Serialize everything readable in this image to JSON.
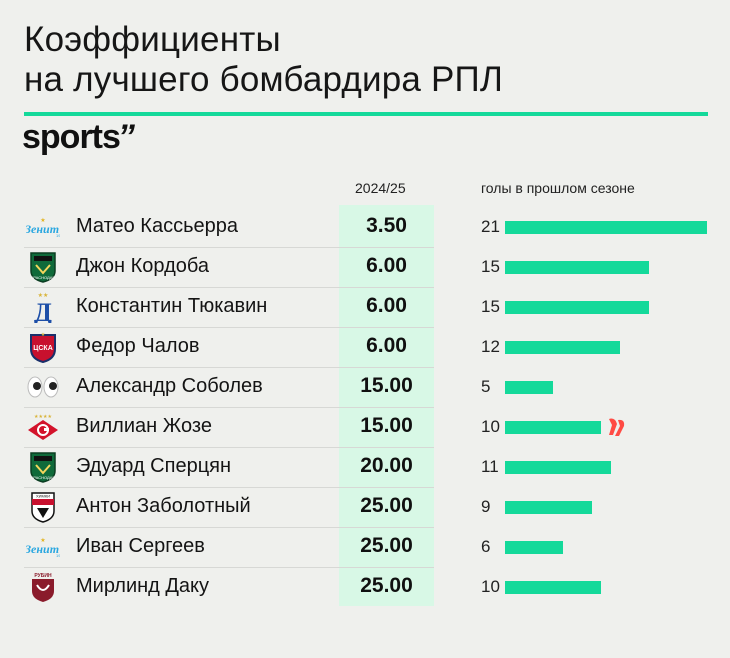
{
  "title_line1": "Коэффициенты",
  "title_line2": "на лучшего бомбардира РПЛ",
  "brand": "sports",
  "brand_mark": "’’",
  "colors": {
    "accent": "#14d99a",
    "odds_bg": "#d8f8e6",
    "background": "#eff0ed"
  },
  "chart_data": {
    "type": "table",
    "columns": [
      "",
      "2024/25",
      "голы в прошлом сезоне"
    ],
    "max_goals": 21,
    "rows": [
      {
        "club_icon": "zenit-logo-icon",
        "player": "Матео Кассьерра",
        "odds": "3.50",
        "goals": 21
      },
      {
        "club_icon": "krasnodar-logo-icon",
        "player": "Джон Кордоба",
        "odds": "6.00",
        "goals": 15
      },
      {
        "club_icon": "dynamo-logo-icon",
        "player": "Константин Тюкавин",
        "odds": "6.00",
        "goals": 15
      },
      {
        "club_icon": "cska-logo-icon",
        "player": "Федор Чалов",
        "odds": "6.00",
        "goals": 12
      },
      {
        "club_icon": "eyes-emoji-icon",
        "player": "Александр Соболев",
        "odds": "15.00",
        "goals": 5
      },
      {
        "club_icon": "spartak-logo-icon",
        "player": "Виллиан Жозе",
        "odds": "15.00",
        "goals": 10,
        "note_icon": "laliga-logo-icon"
      },
      {
        "club_icon": "krasnodar-logo-icon",
        "player": "Эдуард Сперцян",
        "odds": "20.00",
        "goals": 11
      },
      {
        "club_icon": "khimki-logo-icon",
        "player": "Антон Заболотный",
        "odds": "25.00",
        "goals": 9
      },
      {
        "club_icon": "zenit-logo-icon",
        "player": "Иван Сергеев",
        "odds": "25.00",
        "goals": 6
      },
      {
        "club_icon": "rubin-logo-icon",
        "player": "Мирлинд Даку",
        "odds": "25.00",
        "goals": 10
      }
    ]
  }
}
